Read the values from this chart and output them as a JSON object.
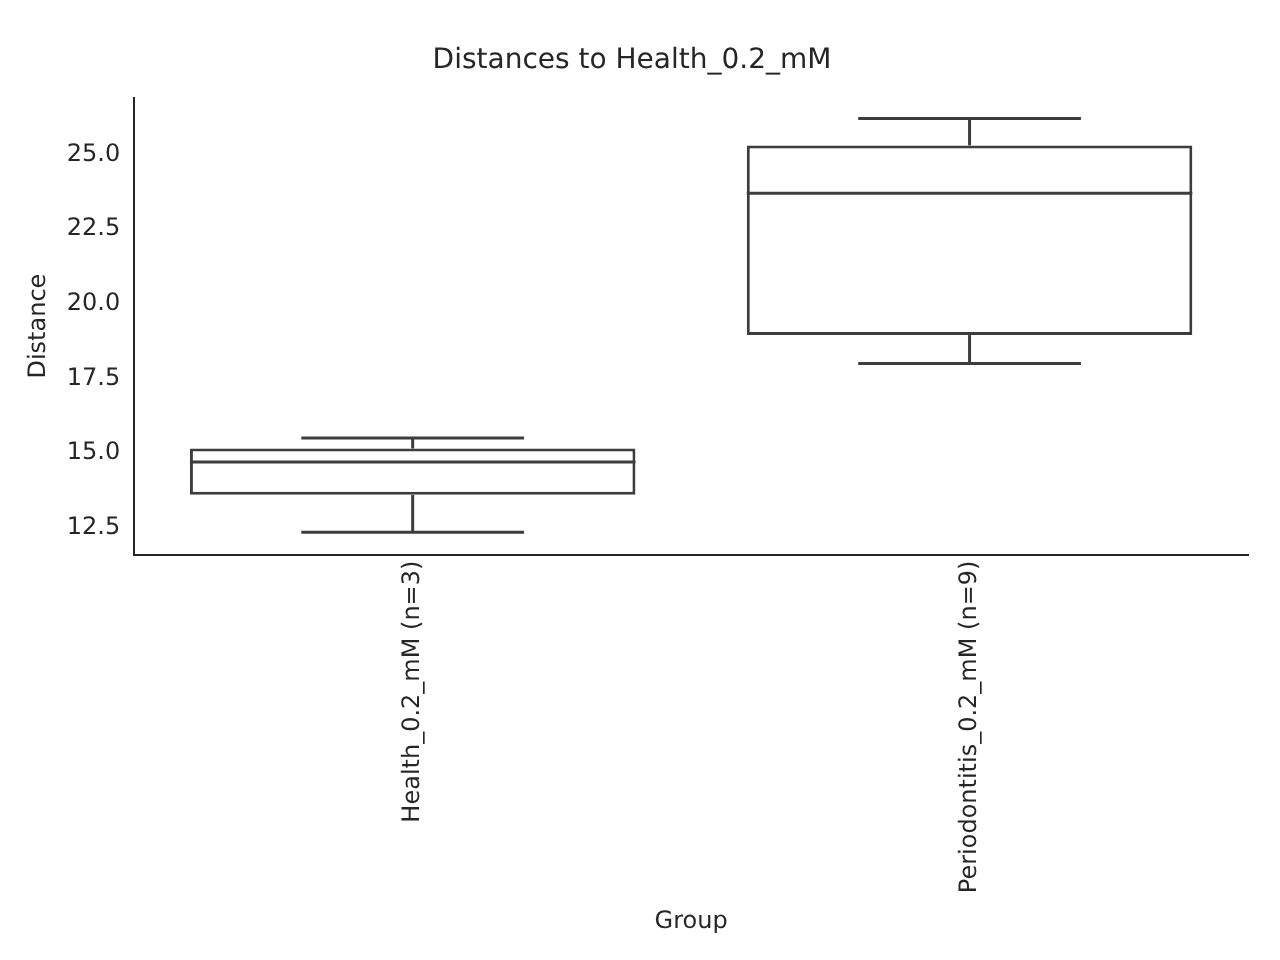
{
  "chart_data": {
    "type": "box",
    "title": "Distances to Health_0.2_mM",
    "xlabel": "Group",
    "ylabel": "Distance",
    "categories": [
      "Health_0.2_mM (n=3)",
      "Periodontitis_0.2_mM (n=9)"
    ],
    "boxes": [
      {
        "low": 12.35,
        "q1": 13.6,
        "median": 14.7,
        "q3": 15.15,
        "high": 15.5
      },
      {
        "low": 18.0,
        "q1": 18.95,
        "median": 23.7,
        "q3": 25.3,
        "high": 26.2
      }
    ],
    "color": "#3d3d3d",
    "ylim": [
      11.6,
      26.9
    ],
    "yticks": [
      {
        "value": 12.5,
        "label": "12.5"
      },
      {
        "value": 15,
        "label": "15.0"
      },
      {
        "value": 17.5,
        "label": "17.5"
      },
      {
        "value": 20,
        "label": "20.0"
      },
      {
        "value": 22.5,
        "label": "22.5"
      },
      {
        "value": 25,
        "label": "25.0"
      }
    ],
    "grid": false,
    "legend": false
  }
}
